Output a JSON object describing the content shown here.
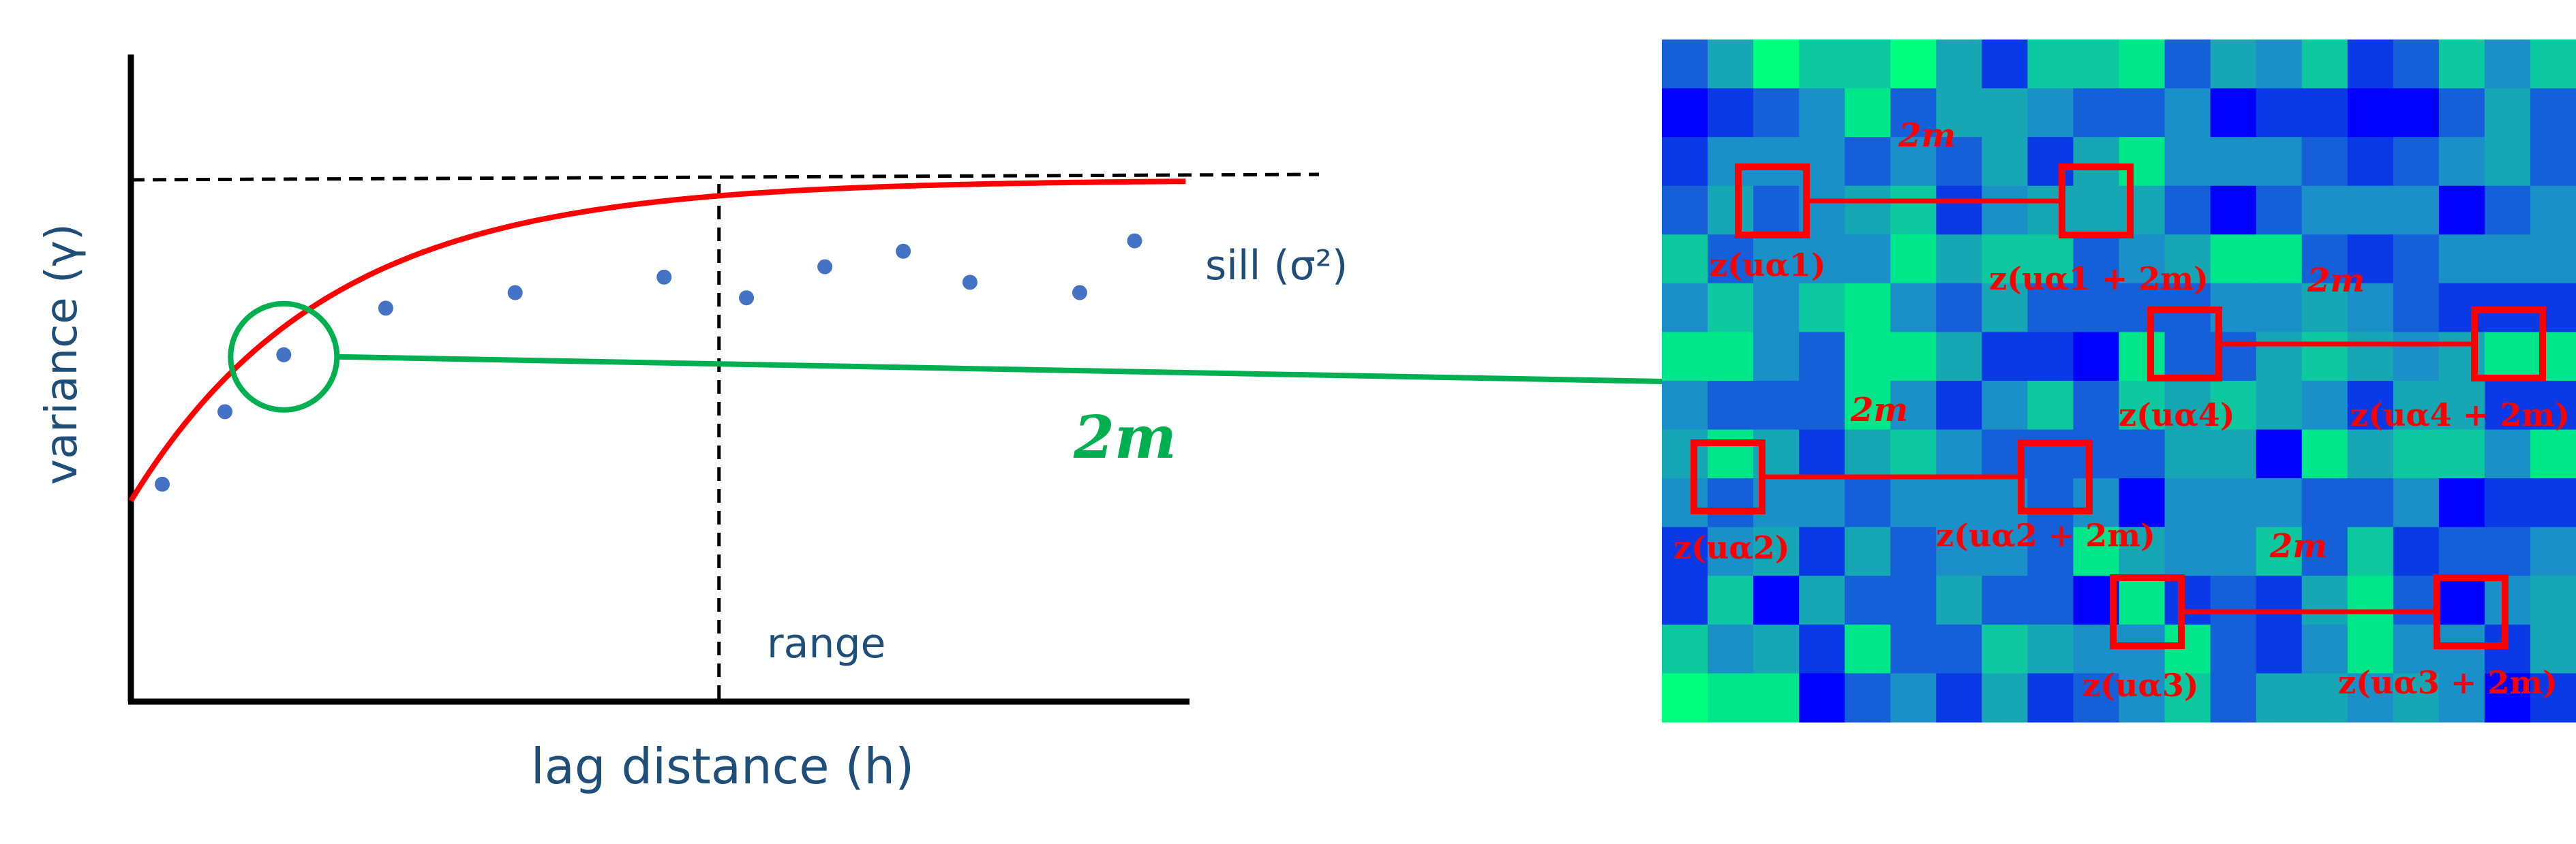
{
  "colors": {
    "axis": "#000000",
    "model_curve": "#ff0000",
    "points": "#4472c4",
    "highlight": "#00b050",
    "lag_boxes": "#ff0000",
    "label_text": "#1f4e79",
    "grid_palette": [
      "#0000ff",
      "#0a3ae6",
      "#1560d8",
      "#1a8fc8",
      "#17a6b4",
      "#0ec9a0",
      "#00e68a",
      "#00ff7f"
    ]
  },
  "variogram": {
    "y_label": "variance (γ)",
    "x_label": "lag distance (h)",
    "sill_label": "sill (σ²)",
    "range_label": "range",
    "lag_label": "2m",
    "sill_value": 1.0,
    "range_value": 7.5,
    "nugget_value": 0.38,
    "x_axis_range": [
      0,
      13.5
    ],
    "y_axis_range": [
      0,
      1.25
    ],
    "experimental_points": [
      {
        "h": 0.4,
        "gamma": 0.42
      },
      {
        "h": 1.2,
        "gamma": 0.56
      },
      {
        "h": 1.95,
        "gamma": 0.67
      },
      {
        "h": 3.25,
        "gamma": 0.76
      },
      {
        "h": 4.9,
        "gamma": 0.79
      },
      {
        "h": 6.8,
        "gamma": 0.82
      },
      {
        "h": 7.85,
        "gamma": 0.78
      },
      {
        "h": 8.85,
        "gamma": 0.84
      },
      {
        "h": 9.85,
        "gamma": 0.87
      },
      {
        "h": 10.7,
        "gamma": 0.81
      },
      {
        "h": 12.1,
        "gamma": 0.79
      },
      {
        "h": 12.8,
        "gamma": 0.89
      }
    ],
    "highlighted_point_index": 2
  },
  "lag_pairs": [
    {
      "lag": "2m",
      "tail": "z(uα1)",
      "head": "z(uα1 + 2m)"
    },
    {
      "lag": "2m",
      "tail": "z(uα4)",
      "head": "z(uα4 + 2m)"
    },
    {
      "lag": "2m",
      "tail": "z(uα2)",
      "head": "z(uα2 + 2m)"
    },
    {
      "lag": "2m",
      "tail": "z(uα3)",
      "head": "z(uα3 + 2m)"
    }
  ],
  "grid": {
    "rows": 14,
    "cols": 20,
    "cells": [
      "24755741556243512535",
      "01236244322301100242",
      "13332324146333212342",
      "24234513444202333023",
      "52333645523466212333",
      "35356324222233432111",
      "66326641106224543466",
      "32226313525454314411",
      "46414532222440645536",
      "32332333230333223011",
      "13414233264335251223",
      "15042242206121462034",
      "53416225433621363314",
      "76602314123524434301"
    ]
  }
}
